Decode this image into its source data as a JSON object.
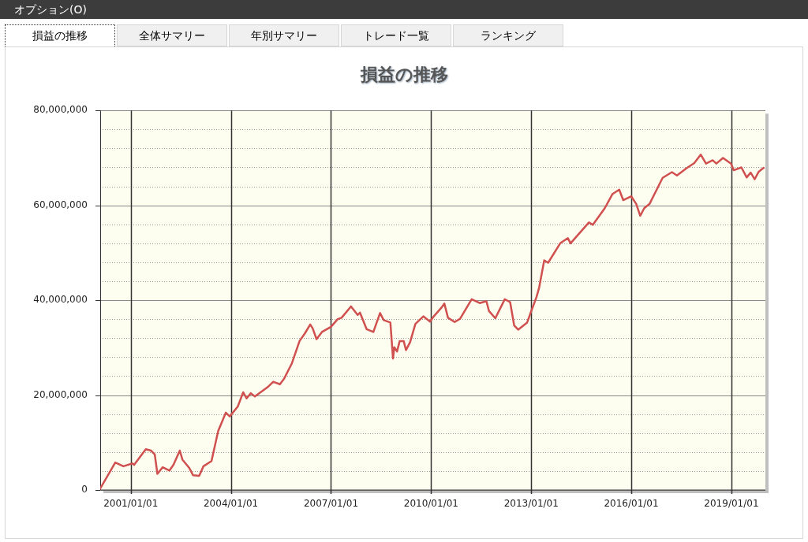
{
  "chart_data": {
    "type": "line",
    "title": "損益の推移",
    "annotations": [
      "オプション(O)",
      "損益の推移",
      "全体サマリー",
      "年別サマリー",
      "トレード一覧",
      "ランキング"
    ],
    "x": [
      "2000-02-01",
      "2000-07-15",
      "2000-10-12",
      "2001-01-19",
      "2001-02-06",
      "2001-06-14",
      "2001-08-11",
      "2001-09-20",
      "2001-10-19",
      "2001-12-16",
      "2002-02-28",
      "2002-04-13",
      "2002-06-21",
      "2002-07-20",
      "2002-10-01",
      "2002-11-14",
      "2003-01-19",
      "2003-03-07",
      "2003-06-03",
      "2003-08-15",
      "2003-11-07",
      "2003-12-20",
      "2004-03-17",
      "2004-05-15",
      "2004-06-21",
      "2004-08-07",
      "2004-09-20",
      "2005-02-14",
      "2005-04-09",
      "2005-06-21",
      "2005-08-04",
      "2005-10-30",
      "2006-01-22",
      "2006-03-21",
      "2006-05-19",
      "2006-06-14",
      "2006-07-27",
      "2006-09-24",
      "2007-01-01",
      "2007-03-15",
      "2007-04-27",
      "2007-08-08",
      "2007-10-20",
      "2007-11-14",
      "2008-01-26",
      "2008-04-09",
      "2008-06-21",
      "2008-07-31",
      "2008-10-12",
      "2008-11-10",
      "2008-11-24",
      "2008-12-24",
      "2009-01-22",
      "2009-03-07",
      "2009-04-01",
      "2009-05-15",
      "2009-07-13",
      "2009-10-08",
      "2009-12-20",
      "2010-01-30",
      "2010-04-27",
      "2010-05-26",
      "2010-07-05",
      "2010-09-16",
      "2010-11-14",
      "2011-03-21",
      "2011-06-17",
      "2011-08-29",
      "2011-09-27",
      "2011-12-05",
      "2012-03-17",
      "2012-05-15",
      "2012-06-28",
      "2012-08-11",
      "2012-11-17",
      "2013-01-01",
      "2013-02-28",
      "2013-03-29",
      "2013-05-23",
      "2013-07-05",
      "2013-11-14",
      "2014-02-06",
      "2014-03-07",
      "2014-09-24",
      "2014-11-07",
      "2015-03-17",
      "2015-06-10",
      "2015-08-22",
      "2015-10-05",
      "2016-01-01",
      "2016-02-24",
      "2016-04-08",
      "2016-05-22",
      "2016-07-19",
      "2016-12-09",
      "2017-03-21",
      "2017-05-15",
      "2017-08-25",
      "2017-11-21",
      "2018-01-30",
      "2018-03-29",
      "2018-06-10",
      "2018-07-20",
      "2018-10-01",
      "2018-12-28",
      "2019-01-26",
      "2019-04-20",
      "2019-06-17",
      "2019-07-31",
      "2019-09-13",
      "2019-10-27",
      "2019-12-20"
    ],
    "series": [
      {
        "color": "#d05050",
        "values": [
          300000,
          5800000,
          5000000,
          5600000,
          5300000,
          8600000,
          8300000,
          7500000,
          3400000,
          4800000,
          4100000,
          5300000,
          8300000,
          6400000,
          4700000,
          3100000,
          3000000,
          5000000,
          6100000,
          12400000,
          16300000,
          15500000,
          17600000,
          20600000,
          19300000,
          20400000,
          19700000,
          21800000,
          22800000,
          22300000,
          23400000,
          26700000,
          31400000,
          33000000,
          34900000,
          34100000,
          31800000,
          33300000,
          34400000,
          36000000,
          36300000,
          38700000,
          36900000,
          37400000,
          33900000,
          33300000,
          37300000,
          35800000,
          35300000,
          27700000,
          30100000,
          29200000,
          31400000,
          31400000,
          29500000,
          31100000,
          35000000,
          36600000,
          35500000,
          36600000,
          38500000,
          39300000,
          36300000,
          35400000,
          36100000,
          40200000,
          39400000,
          39800000,
          37700000,
          36200000,
          40200000,
          39600000,
          34700000,
          33800000,
          35300000,
          37700000,
          40700000,
          42700000,
          48400000,
          47900000,
          52000000,
          53100000,
          52000000,
          56400000,
          55900000,
          59400000,
          62400000,
          63300000,
          61100000,
          61900000,
          60300000,
          57800000,
          59400000,
          60300000,
          65800000,
          67000000,
          66300000,
          67800000,
          68900000,
          70700000,
          68800000,
          69500000,
          68800000,
          70000000,
          68800000,
          67400000,
          68000000,
          65900000,
          66900000,
          65500000,
          67100000,
          67900000
        ]
      }
    ],
    "xlim": [
      "2000-02-01",
      "2020-01-08"
    ],
    "xticks": [
      {
        "value": "2001-01-01",
        "label": "2001/01/01"
      },
      {
        "value": "2004-01-01",
        "label": "2004/01/01"
      },
      {
        "value": "2007-01-01",
        "label": "2007/01/01"
      },
      {
        "value": "2010-01-01",
        "label": "2010/01/01"
      },
      {
        "value": "2013-01-01",
        "label": "2013/01/01"
      },
      {
        "value": "2016-01-01",
        "label": "2016/01/01"
      },
      {
        "value": "2019-01-01",
        "label": "2019/01/01"
      }
    ],
    "ylim": [
      0,
      80000000
    ],
    "yticks": [
      0,
      {
        "value": 4000000,
        "label": null
      },
      {
        "value": 8000000,
        "label": null
      },
      {
        "value": 12000000,
        "label": null
      },
      {
        "value": 16000000,
        "label": null
      },
      {
        "value": 20000000,
        "label": "20,000,000"
      },
      {
        "value": 24000000,
        "label": null
      },
      {
        "value": 28000000,
        "label": null
      },
      {
        "value": 32000000,
        "label": null
      },
      {
        "value": 36000000,
        "label": null
      },
      {
        "value": 40000000,
        "label": "40,000,000"
      },
      {
        "value": 44000000,
        "label": null
      },
      {
        "value": 48000000,
        "label": null
      },
      {
        "value": 52000000,
        "label": null
      },
      {
        "value": 56000000,
        "label": null
      },
      {
        "value": 60000000,
        "label": "60,000,000"
      },
      {
        "value": 64000000,
        "label": null
      },
      {
        "value": 68000000,
        "label": null
      },
      {
        "value": 72000000,
        "label": null
      },
      {
        "value": 76000000,
        "label": null
      },
      {
        "value": 80000000,
        "label": "80,000,000"
      }
    ],
    "grid": true,
    "legend": false,
    "marker": "none",
    "line_style": "solid"
  }
}
